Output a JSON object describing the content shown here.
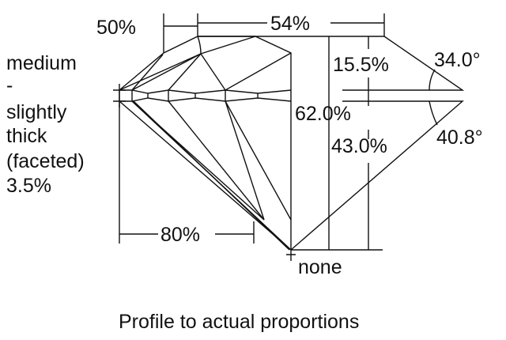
{
  "labels": {
    "table_length": "50%",
    "table_width": "54%",
    "crown_height": "15.5%",
    "crown_angle": "34.0°",
    "total_depth": "62.0%",
    "pavilion_depth": "43.0%",
    "pavilion_angle": "40.8°",
    "lower_half": "80%",
    "culet": "none"
  },
  "girdle": [
    "medium",
    "-",
    "slightly",
    "thick",
    "(faceted)",
    "3.5%"
  ],
  "caption": "Profile to actual proportions"
}
